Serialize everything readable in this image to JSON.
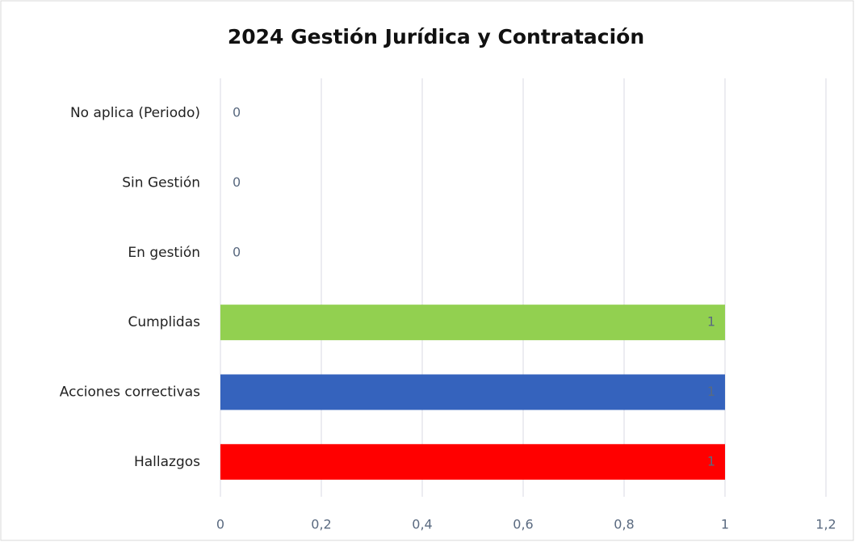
{
  "chart_data": {
    "type": "bar",
    "orientation": "horizontal",
    "title": "2024 Gestión Jurídica y Contratación",
    "categories": [
      "No aplica (Periodo)",
      "Sin Gestión",
      "En gestión",
      "Cumplidas",
      "Acciones correctivas",
      "Hallazgos"
    ],
    "values": [
      0,
      0,
      0,
      1,
      1,
      1
    ],
    "colors": [
      "#92d050",
      "#92d050",
      "#92d050",
      "#92d050",
      "#3563bd",
      "#ff0000"
    ],
    "xlim": [
      0,
      1.2
    ],
    "xticks": [
      0,
      {
        "value": 0.2,
        "label": "0,2"
      },
      {
        "value": 0.4,
        "label": "0,4"
      },
      {
        "value": 0.6,
        "label": "0,6"
      },
      {
        "value": 0.8,
        "label": "0,8"
      },
      1,
      {
        "value": 1.2,
        "label": "1,2"
      }
    ],
    "grid": true
  }
}
